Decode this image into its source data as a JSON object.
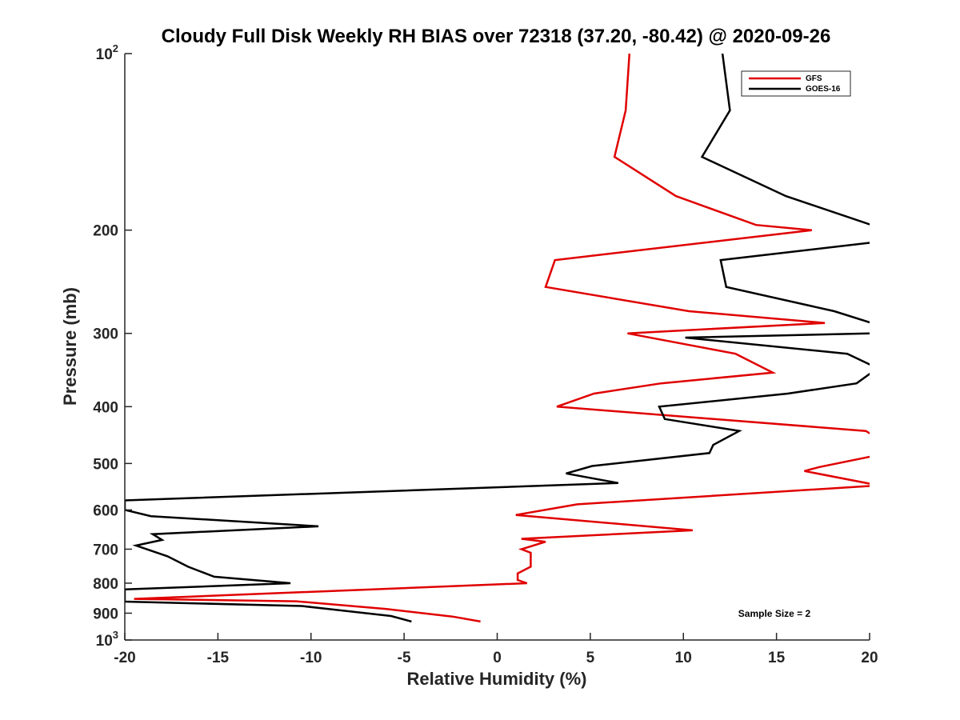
{
  "chart_data": {
    "type": "line",
    "title": "Cloudy Full Disk Weekly RH BIAS over 72318 (37.20, -80.42) @ 2020-09-26",
    "xlabel": "Relative Humidity (%)",
    "ylabel": "Pressure (mb)",
    "xlim": [
      -20,
      20
    ],
    "ylim": [
      100,
      1000
    ],
    "yscale": "log",
    "y_reversed": true,
    "grid": false,
    "legend_position": "top-right",
    "x_ticks": [
      {
        "value": -20,
        "label": "-20"
      },
      {
        "value": -15,
        "label": "-15"
      },
      {
        "value": -10,
        "label": "-10"
      },
      {
        "value": -5,
        "label": "-5"
      },
      {
        "value": 0,
        "label": "0"
      },
      {
        "value": 5,
        "label": "5"
      },
      {
        "value": 10,
        "label": "10"
      },
      {
        "value": 15,
        "label": "15"
      },
      {
        "value": 20,
        "label": "20"
      }
    ],
    "y_ticks": [
      {
        "value": 100,
        "label": "10",
        "exponent": "2"
      },
      {
        "value": 200,
        "label": "200"
      },
      {
        "value": 300,
        "label": "300"
      },
      {
        "value": 400,
        "label": "400"
      },
      {
        "value": 500,
        "label": "500"
      },
      {
        "value": 600,
        "label": "600"
      },
      {
        "value": 700,
        "label": "700"
      },
      {
        "value": 800,
        "label": "800"
      },
      {
        "value": 900,
        "label": "900"
      },
      {
        "value": 1000,
        "label": "10",
        "exponent": "3"
      }
    ],
    "annotation": "Sample Size = 2",
    "series": [
      {
        "name": "GFS",
        "color": "#e00000",
        "points": [
          [
            7.1,
            100
          ],
          [
            6.9,
            125
          ],
          [
            6.3,
            150
          ],
          [
            9.6,
            175
          ],
          [
            13.9,
            196
          ],
          [
            16.9,
            200
          ],
          [
            3.1,
            225
          ],
          [
            2.6,
            250
          ],
          [
            10.3,
            275
          ],
          [
            17.6,
            288
          ],
          [
            7.0,
            300
          ],
          [
            12.8,
            325
          ],
          [
            14.8,
            350
          ],
          [
            8.8,
            365
          ],
          [
            5.2,
            380
          ],
          [
            3.2,
            400
          ],
          [
            19.8,
            440
          ],
          [
            20.3,
            450
          ],
          [
            20.3,
            485
          ],
          [
            17.3,
            507
          ],
          [
            16.5,
            515
          ],
          [
            20.5,
            545
          ],
          [
            4.3,
            587
          ],
          [
            1.0,
            612
          ],
          [
            10.5,
            650
          ],
          [
            1.3,
            672
          ],
          [
            2.6,
            680
          ],
          [
            1.3,
            700
          ],
          [
            1.8,
            710
          ],
          [
            1.8,
            750
          ],
          [
            1.1,
            770
          ],
          [
            1.1,
            790
          ],
          [
            1.6,
            800
          ],
          [
            -19.5,
            851
          ],
          [
            -10.8,
            859
          ],
          [
            -6.0,
            885
          ],
          [
            -2.4,
            912
          ],
          [
            -0.9,
            930
          ]
        ]
      },
      {
        "name": "GOES-16",
        "color": "#000000",
        "points": [
          [
            12.1,
            100
          ],
          [
            12.5,
            125
          ],
          [
            11.0,
            150
          ],
          [
            15.5,
            175
          ],
          [
            20.1,
            196
          ],
          [
            20.1,
            210
          ],
          [
            12.0,
            225
          ],
          [
            12.3,
            250
          ],
          [
            18.1,
            275
          ],
          [
            20.1,
            288
          ],
          [
            20.1,
            300
          ],
          [
            10.1,
            305
          ],
          [
            18.8,
            325
          ],
          [
            20.1,
            340
          ],
          [
            20.1,
            350
          ],
          [
            19.3,
            365
          ],
          [
            15.6,
            380
          ],
          [
            8.7,
            400
          ],
          [
            9.0,
            420
          ],
          [
            13.0,
            440
          ],
          [
            11.6,
            465
          ],
          [
            11.4,
            480
          ],
          [
            5.1,
            505
          ],
          [
            3.7,
            520
          ],
          [
            6.5,
            540
          ],
          [
            -20.0,
            578
          ],
          [
            -20.0,
            600
          ],
          [
            -18.6,
            615
          ],
          [
            -9.6,
            640
          ],
          [
            -18.5,
            660
          ],
          [
            -18.0,
            675
          ],
          [
            -19.4,
            690
          ],
          [
            -17.7,
            720
          ],
          [
            -16.6,
            750
          ],
          [
            -15.2,
            780
          ],
          [
            -11.1,
            800
          ],
          [
            -20.0,
            820
          ],
          [
            -20.0,
            860
          ],
          [
            -10.5,
            875
          ],
          [
            -5.7,
            910
          ],
          [
            -4.6,
            930
          ]
        ]
      }
    ]
  }
}
